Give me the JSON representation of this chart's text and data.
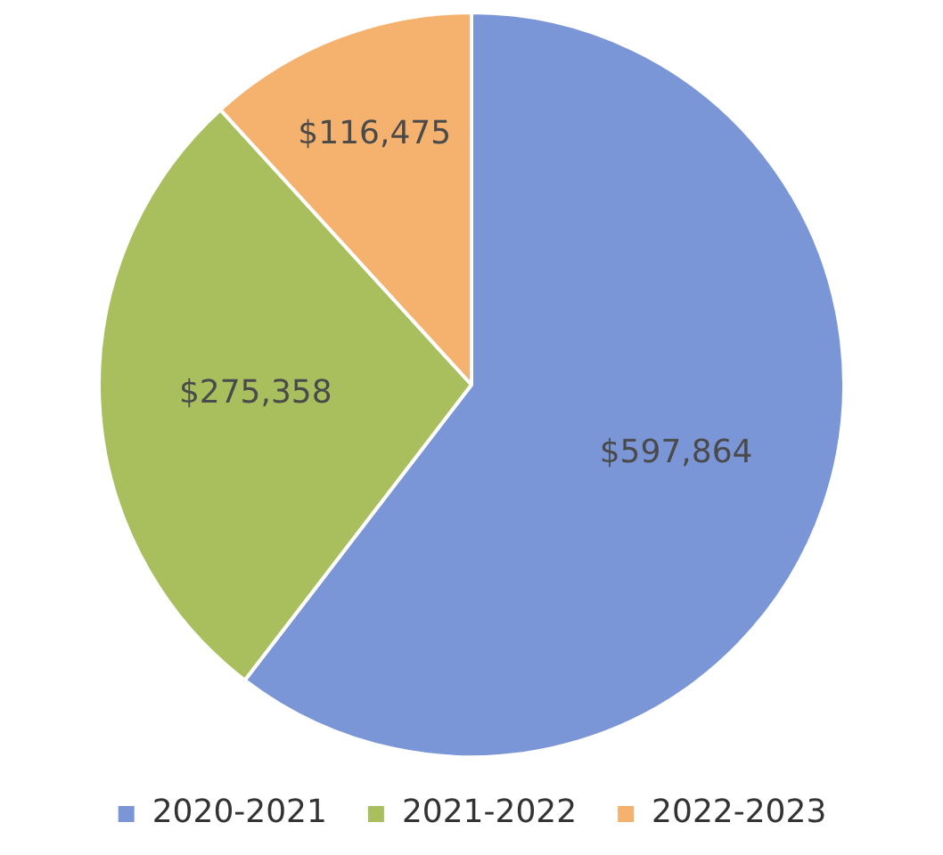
{
  "chart_data": {
    "type": "pie",
    "categories": [
      "2020-2021",
      "2021-2022",
      "2022-2023"
    ],
    "values": [
      597864,
      275358,
      116475
    ],
    "value_labels": [
      "$597,864",
      "$275,358",
      "$116,475"
    ],
    "colors": [
      "#7b96d6",
      "#a9bf5e",
      "#f5b26e"
    ],
    "legend": "bottom"
  }
}
